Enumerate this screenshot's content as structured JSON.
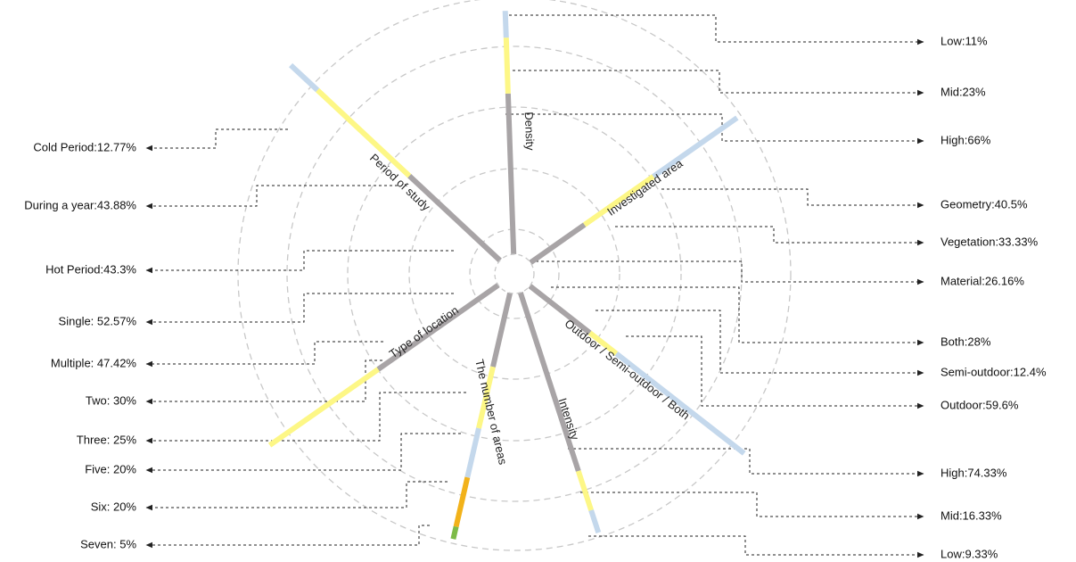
{
  "palette": {
    "grey": "#a8a4a6",
    "yellow": "#fdf786",
    "light_blue": "#c4d8ec",
    "orange": "#f2b21a",
    "green": "#7dbb48",
    "circle": "#c8c8c8",
    "leader": "#222222"
  },
  "axes": [
    {
      "id": "density",
      "name": "Density",
      "angle": -92,
      "segments": [
        {
          "label": "High:66%",
          "value": 66,
          "color": "grey"
        },
        {
          "label": "Mid:23%",
          "value": 23,
          "color": "yellow"
        },
        {
          "label": "Low:11%",
          "value": 11,
          "color": "light_blue"
        }
      ]
    },
    {
      "id": "investigated-area",
      "name": "Investigated area",
      "angle": -35,
      "segments": [
        {
          "label": "Material:26.16%",
          "value": 26.16,
          "color": "grey"
        },
        {
          "label": "Vegetation:33.33%",
          "value": 33.33,
          "color": "yellow"
        },
        {
          "label": "Geometry:40.5%",
          "value": 40.5,
          "color": "light_blue"
        }
      ]
    },
    {
      "id": "location-setting",
      "name": "Outdoor / Semi-outdoor / Both",
      "angle": 38,
      "segments": [
        {
          "label": "Both:28%",
          "value": 28,
          "color": "grey"
        },
        {
          "label": "Semi-outdoor:12.4%",
          "value": 12.4,
          "color": "yellow"
        },
        {
          "label": "Outdoor:59.6%",
          "value": 59.6,
          "color": "light_blue"
        }
      ]
    },
    {
      "id": "intensity",
      "name": "Intensity",
      "angle": 72,
      "segments": [
        {
          "label": "High:74.33%",
          "value": 74.33,
          "color": "grey"
        },
        {
          "label": "Mid:16.33%",
          "value": 16.33,
          "color": "yellow"
        },
        {
          "label": "Low:9.33%",
          "value": 9.33,
          "color": "light_blue"
        }
      ]
    },
    {
      "id": "number-of-areas",
      "name": "The number of areas",
      "angle": 103,
      "segments": [
        {
          "label": "Two: 30%",
          "value": 30,
          "color": "grey"
        },
        {
          "label": "Three: 25%",
          "value": 25,
          "color": "yellow"
        },
        {
          "label": "Five: 20%",
          "value": 20,
          "color": "light_blue"
        },
        {
          "label": "Six: 20%",
          "value": 20,
          "color": "orange"
        },
        {
          "label": "Seven: 5%",
          "value": 5,
          "color": "green"
        }
      ]
    },
    {
      "id": "type-of-location",
      "name": "Type of location",
      "angle": 145,
      "segments": [
        {
          "label": "Single: 52.57%",
          "value": 52.57,
          "color": "grey"
        },
        {
          "label": "Multiple: 47.42%",
          "value": 47.42,
          "color": "yellow"
        }
      ]
    },
    {
      "id": "period-of-study",
      "name": "Period of study",
      "angle": -137,
      "segments": [
        {
          "label": "Hot Period:43.3%",
          "value": 43.3,
          "color": "grey"
        },
        {
          "label": "During a year:43.88%",
          "value": 43.88,
          "color": "yellow"
        },
        {
          "label": "Cold Period:12.77%",
          "value": 12.77,
          "color": "light_blue"
        }
      ]
    }
  ],
  "right_labels": [
    "Low:11%",
    "Mid:23%",
    "High:66%",
    "Geometry:40.5%",
    "Vegetation:33.33%",
    "Material:26.16%",
    "Both:28%",
    "Semi-outdoor:12.4%",
    "Outdoor:59.6%",
    "High:74.33%",
    "Mid:16.33%",
    "Low:9.33%"
  ],
  "left_labels": [
    "Cold Period:12.77%",
    "During a year:43.88%",
    "Hot Period:43.3%",
    "Single: 52.57%",
    "Multiple: 47.42%",
    "Two: 30%",
    "Three: 25%",
    "Five: 20%",
    "Six: 20%",
    "Seven: 5%"
  ]
}
